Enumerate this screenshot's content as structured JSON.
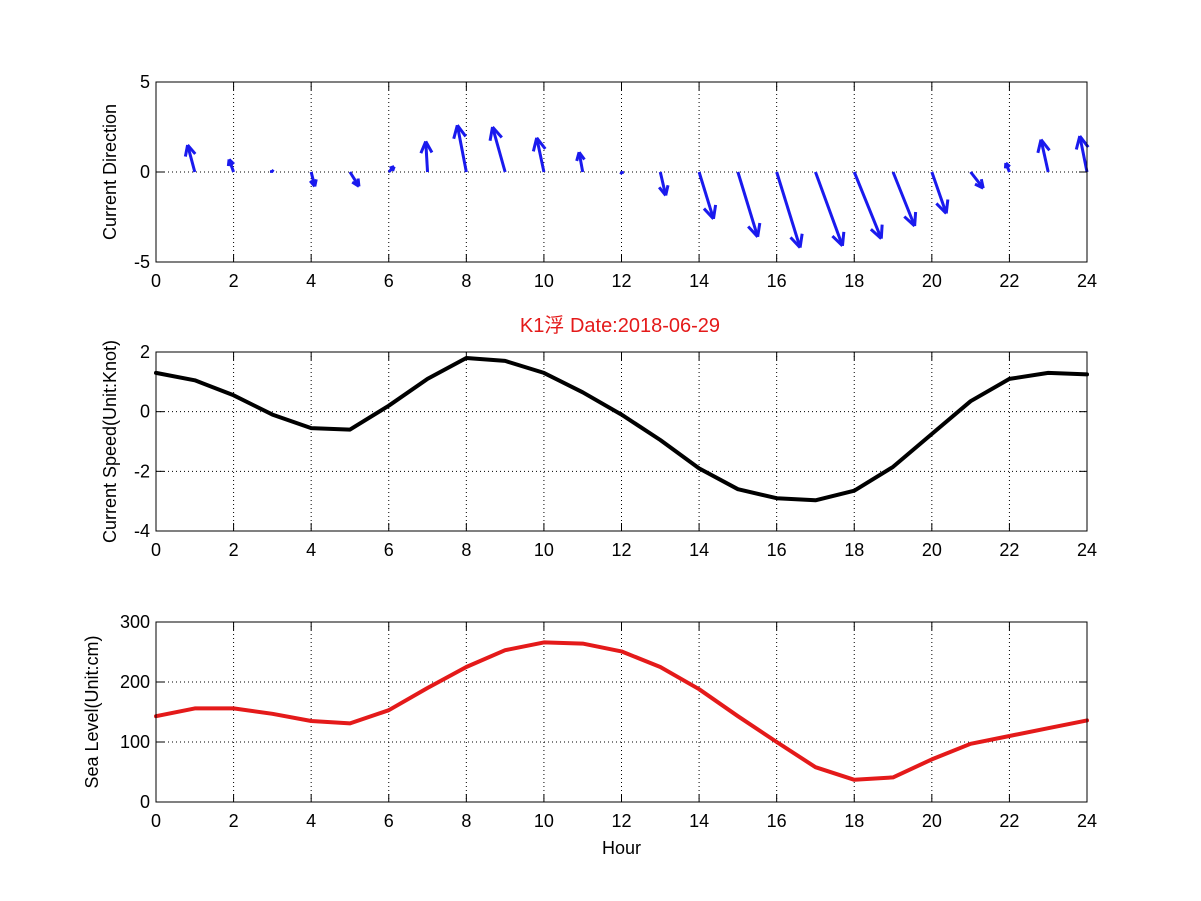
{
  "title": "K1浮    Date:2018-06-29",
  "colors": {
    "title": "#e41a1a",
    "direction": "#1a1aee",
    "speed": "#000000",
    "level": "#e41a1a",
    "axis": "#000000",
    "grid": "#000000"
  },
  "chart_data": [
    {
      "type": "quiver",
      "ylabel": "Current Direction",
      "xlim": [
        0,
        24
      ],
      "ylim": [
        -5,
        5
      ],
      "xticks": [
        0,
        2,
        4,
        6,
        8,
        10,
        12,
        14,
        16,
        18,
        20,
        22,
        24
      ],
      "yticks": [
        -5,
        0,
        5
      ],
      "grid": true,
      "x": [
        1,
        2,
        3,
        4,
        5,
        6,
        7,
        8,
        9,
        10,
        11,
        12,
        13,
        14,
        15,
        16,
        17,
        18,
        19,
        20,
        21,
        22,
        23,
        24
      ],
      "u": [
        -0.4,
        -0.25,
        -0.05,
        0.2,
        0.5,
        0.3,
        -0.1,
        -0.5,
        -0.7,
        -0.4,
        -0.2,
        0.05,
        0.3,
        0.8,
        1.1,
        1.3,
        1.5,
        1.5,
        1.2,
        0.8,
        0.7,
        -0.2,
        -0.4,
        -0.4
      ],
      "v": [
        1.5,
        0.7,
        0.1,
        -0.8,
        -0.8,
        0.3,
        1.7,
        2.6,
        2.5,
        1.9,
        1.1,
        -0.1,
        -1.3,
        -2.6,
        -3.6,
        -4.2,
        -4.1,
        -3.7,
        -3.0,
        -2.3,
        -0.9,
        0.5,
        1.8,
        2.0
      ]
    },
    {
      "type": "line",
      "ylabel": "Current Speed(Unit:Knot)",
      "xlim": [
        0,
        24
      ],
      "ylim": [
        -4,
        2
      ],
      "xticks": [
        0,
        2,
        4,
        6,
        8,
        10,
        12,
        14,
        16,
        18,
        20,
        22,
        24
      ],
      "yticks": [
        -4,
        -2,
        0,
        2
      ],
      "grid": true,
      "x": [
        0,
        1,
        2,
        3,
        4,
        5,
        6,
        7,
        8,
        9,
        10,
        11,
        12,
        13,
        14,
        15,
        16,
        17,
        18,
        19,
        20,
        21,
        22,
        23,
        24
      ],
      "y": [
        1.3,
        1.05,
        0.55,
        -0.1,
        -0.55,
        -0.6,
        0.2,
        1.1,
        1.8,
        1.7,
        1.3,
        0.65,
        -0.1,
        -0.95,
        -1.9,
        -2.6,
        -2.9,
        -2.97,
        -2.65,
        -1.85,
        -0.75,
        0.35,
        1.1,
        1.3,
        1.25
      ]
    },
    {
      "type": "line",
      "ylabel": "Sea Level(Unit:cm)",
      "xlabel": "Hour",
      "xlim": [
        0,
        24
      ],
      "ylim": [
        0,
        300
      ],
      "xticks": [
        0,
        2,
        4,
        6,
        8,
        10,
        12,
        14,
        16,
        18,
        20,
        22,
        24
      ],
      "yticks": [
        0,
        100,
        200,
        300
      ],
      "grid": true,
      "x": [
        0,
        1,
        2,
        3,
        4,
        5,
        6,
        7,
        8,
        9,
        10,
        11,
        12,
        13,
        14,
        15,
        16,
        17,
        18,
        19,
        20,
        21,
        22,
        23,
        24
      ],
      "y": [
        143,
        156,
        156,
        147,
        135,
        131,
        153,
        190,
        225,
        253,
        266,
        264,
        251,
        225,
        188,
        143,
        100,
        58,
        37,
        41,
        71,
        97,
        110,
        123,
        136
      ]
    }
  ]
}
